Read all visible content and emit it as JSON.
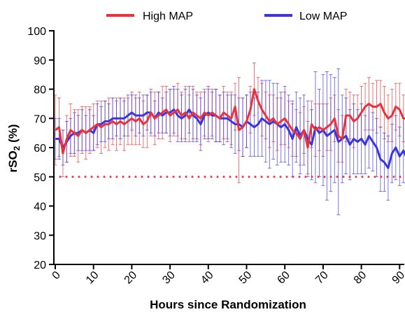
{
  "chart_data": {
    "type": "line",
    "xlabel": "Hours since Randomization",
    "ylabel_main": "rSO",
    "ylabel_sub": "2",
    "ylabel_unit": " (%)",
    "xlim": [
      0,
      95
    ],
    "ylim": [
      20,
      100
    ],
    "xticks": [
      0,
      10,
      20,
      30,
      40,
      50,
      60,
      70,
      80,
      90
    ],
    "yticks": [
      20,
      30,
      40,
      50,
      60,
      70,
      80,
      90,
      100
    ],
    "reference_line": {
      "y": 50,
      "style": "dotted",
      "color": "#e8333a"
    },
    "legend_position": "top",
    "grid": false,
    "series": [
      {
        "name": "High MAP",
        "color": "#e8333a",
        "points": [
          [
            0,
            66,
            12
          ],
          [
            1,
            67,
            10
          ],
          [
            2,
            58,
            8
          ],
          [
            3,
            63,
            8
          ],
          [
            4,
            66,
            9
          ],
          [
            5,
            65,
            8
          ],
          [
            6,
            64,
            9
          ],
          [
            7,
            66,
            8
          ],
          [
            8,
            65,
            9
          ],
          [
            9,
            66,
            8
          ],
          [
            10,
            67,
            8
          ],
          [
            11,
            68,
            8
          ],
          [
            12,
            67,
            9
          ],
          [
            13,
            68,
            8
          ],
          [
            14,
            68,
            9
          ],
          [
            15,
            69,
            8
          ],
          [
            16,
            68,
            9
          ],
          [
            17,
            69,
            8
          ],
          [
            18,
            68,
            9
          ],
          [
            19,
            69,
            8
          ],
          [
            20,
            70,
            9
          ],
          [
            21,
            69,
            8
          ],
          [
            22,
            70,
            9
          ],
          [
            23,
            68,
            8
          ],
          [
            24,
            69,
            9
          ],
          [
            25,
            72,
            8
          ],
          [
            26,
            70,
            9
          ],
          [
            27,
            71,
            8
          ],
          [
            28,
            72,
            9
          ],
          [
            29,
            73,
            8
          ],
          [
            30,
            71,
            9
          ],
          [
            31,
            72,
            8
          ],
          [
            32,
            73,
            9
          ],
          [
            33,
            71,
            8
          ],
          [
            34,
            72,
            9
          ],
          [
            35,
            70,
            8
          ],
          [
            36,
            72,
            9
          ],
          [
            37,
            71,
            8
          ],
          [
            38,
            70,
            9
          ],
          [
            39,
            72,
            8
          ],
          [
            40,
            71,
            9
          ],
          [
            41,
            72,
            8
          ],
          [
            42,
            71,
            9
          ],
          [
            43,
            70,
            8
          ],
          [
            44,
            72,
            9
          ],
          [
            45,
            71,
            8
          ],
          [
            46,
            70,
            9
          ],
          [
            47,
            74,
            8
          ],
          [
            48,
            66,
            18
          ],
          [
            49,
            67,
            10
          ],
          [
            50,
            69,
            9
          ],
          [
            51,
            73,
            8
          ],
          [
            52,
            80,
            9
          ],
          [
            53,
            76,
            8
          ],
          [
            54,
            73,
            9
          ],
          [
            55,
            71,
            8
          ],
          [
            56,
            69,
            9
          ],
          [
            57,
            70,
            8
          ],
          [
            58,
            68,
            9
          ],
          [
            59,
            69,
            8
          ],
          [
            60,
            70,
            9
          ],
          [
            61,
            68,
            8
          ],
          [
            62,
            66,
            9
          ],
          [
            63,
            65,
            8
          ],
          [
            64,
            63,
            9
          ],
          [
            65,
            66,
            8
          ],
          [
            66,
            60,
            9
          ],
          [
            67,
            68,
            8
          ],
          [
            68,
            66,
            9
          ],
          [
            69,
            67,
            8
          ],
          [
            70,
            66,
            9
          ],
          [
            71,
            67,
            8
          ],
          [
            72,
            68,
            9
          ],
          [
            73,
            70,
            8
          ],
          [
            74,
            64,
            9
          ],
          [
            75,
            63,
            8
          ],
          [
            76,
            71,
            9
          ],
          [
            77,
            71,
            8
          ],
          [
            78,
            69,
            9
          ],
          [
            79,
            70,
            8
          ],
          [
            80,
            72,
            9
          ],
          [
            81,
            74,
            8
          ],
          [
            82,
            75,
            9
          ],
          [
            83,
            74,
            8
          ],
          [
            84,
            74,
            9
          ],
          [
            85,
            75,
            8
          ],
          [
            86,
            72,
            9
          ],
          [
            87,
            70,
            8
          ],
          [
            88,
            71,
            9
          ],
          [
            89,
            74,
            8
          ],
          [
            90,
            73,
            9
          ],
          [
            91,
            70,
            8
          ],
          [
            92,
            70,
            9
          ],
          [
            93,
            70,
            8
          ],
          [
            94,
            67,
            9
          ]
        ]
      },
      {
        "name": "Low MAP",
        "color": "#3a35e0",
        "points": [
          [
            0,
            63,
            7
          ],
          [
            1,
            63,
            7
          ],
          [
            2,
            60,
            6
          ],
          [
            3,
            62,
            7
          ],
          [
            4,
            64,
            6
          ],
          [
            5,
            65,
            7
          ],
          [
            6,
            65,
            6
          ],
          [
            7,
            66,
            7
          ],
          [
            8,
            65,
            6
          ],
          [
            9,
            66,
            7
          ],
          [
            10,
            65,
            6
          ],
          [
            11,
            68,
            7
          ],
          [
            12,
            68,
            6
          ],
          [
            13,
            69,
            7
          ],
          [
            14,
            69,
            6
          ],
          [
            15,
            70,
            7
          ],
          [
            16,
            70,
            6
          ],
          [
            17,
            70,
            7
          ],
          [
            18,
            70,
            6
          ],
          [
            19,
            71,
            7
          ],
          [
            20,
            72,
            6
          ],
          [
            21,
            71,
            7
          ],
          [
            22,
            71,
            6
          ],
          [
            23,
            71,
            7
          ],
          [
            24,
            72,
            6
          ],
          [
            25,
            72,
            7
          ],
          [
            26,
            70,
            6
          ],
          [
            27,
            72,
            7
          ],
          [
            28,
            71,
            6
          ],
          [
            29,
            72,
            7
          ],
          [
            30,
            72,
            8
          ],
          [
            31,
            73,
            8
          ],
          [
            32,
            71,
            9
          ],
          [
            33,
            70,
            8
          ],
          [
            34,
            71,
            9
          ],
          [
            35,
            73,
            8
          ],
          [
            36,
            71,
            9
          ],
          [
            37,
            70,
            8
          ],
          [
            38,
            68,
            9
          ],
          [
            39,
            71,
            8
          ],
          [
            40,
            72,
            9
          ],
          [
            41,
            71,
            8
          ],
          [
            42,
            71,
            9
          ],
          [
            43,
            70,
            8
          ],
          [
            44,
            70,
            9
          ],
          [
            45,
            70,
            8
          ],
          [
            46,
            69,
            9
          ],
          [
            47,
            68,
            10
          ],
          [
            48,
            68,
            9
          ],
          [
            49,
            67,
            10
          ],
          [
            50,
            69,
            9
          ],
          [
            51,
            68,
            11
          ],
          [
            52,
            67,
            10
          ],
          [
            53,
            68,
            11
          ],
          [
            54,
            70,
            13
          ],
          [
            55,
            69,
            14
          ],
          [
            56,
            68,
            15
          ],
          [
            57,
            69,
            13
          ],
          [
            58,
            68,
            14
          ],
          [
            59,
            67,
            12
          ],
          [
            60,
            68,
            13
          ],
          [
            61,
            66,
            12
          ],
          [
            62,
            63,
            13
          ],
          [
            63,
            67,
            12
          ],
          [
            64,
            64,
            13
          ],
          [
            65,
            66,
            12
          ],
          [
            66,
            63,
            13
          ],
          [
            67,
            61,
            12
          ],
          [
            68,
            67,
            19
          ],
          [
            69,
            65,
            15
          ],
          [
            70,
            66,
            19
          ],
          [
            71,
            64,
            22
          ],
          [
            72,
            65,
            20
          ],
          [
            73,
            66,
            18
          ],
          [
            74,
            62,
            25
          ],
          [
            75,
            63,
            15
          ],
          [
            76,
            64,
            13
          ],
          [
            77,
            61,
            12
          ],
          [
            78,
            63,
            12
          ],
          [
            79,
            62,
            11
          ],
          [
            80,
            63,
            12
          ],
          [
            81,
            61,
            10
          ],
          [
            82,
            64,
            11
          ],
          [
            83,
            62,
            10
          ],
          [
            84,
            60,
            10
          ],
          [
            85,
            56,
            11
          ],
          [
            86,
            55,
            10
          ],
          [
            87,
            53,
            11
          ],
          [
            88,
            58,
            10
          ],
          [
            89,
            60,
            11
          ],
          [
            90,
            57,
            10
          ],
          [
            91,
            59,
            11
          ],
          [
            92,
            56,
            10
          ],
          [
            93,
            57,
            11
          ],
          [
            94,
            52,
            19
          ]
        ]
      }
    ]
  }
}
